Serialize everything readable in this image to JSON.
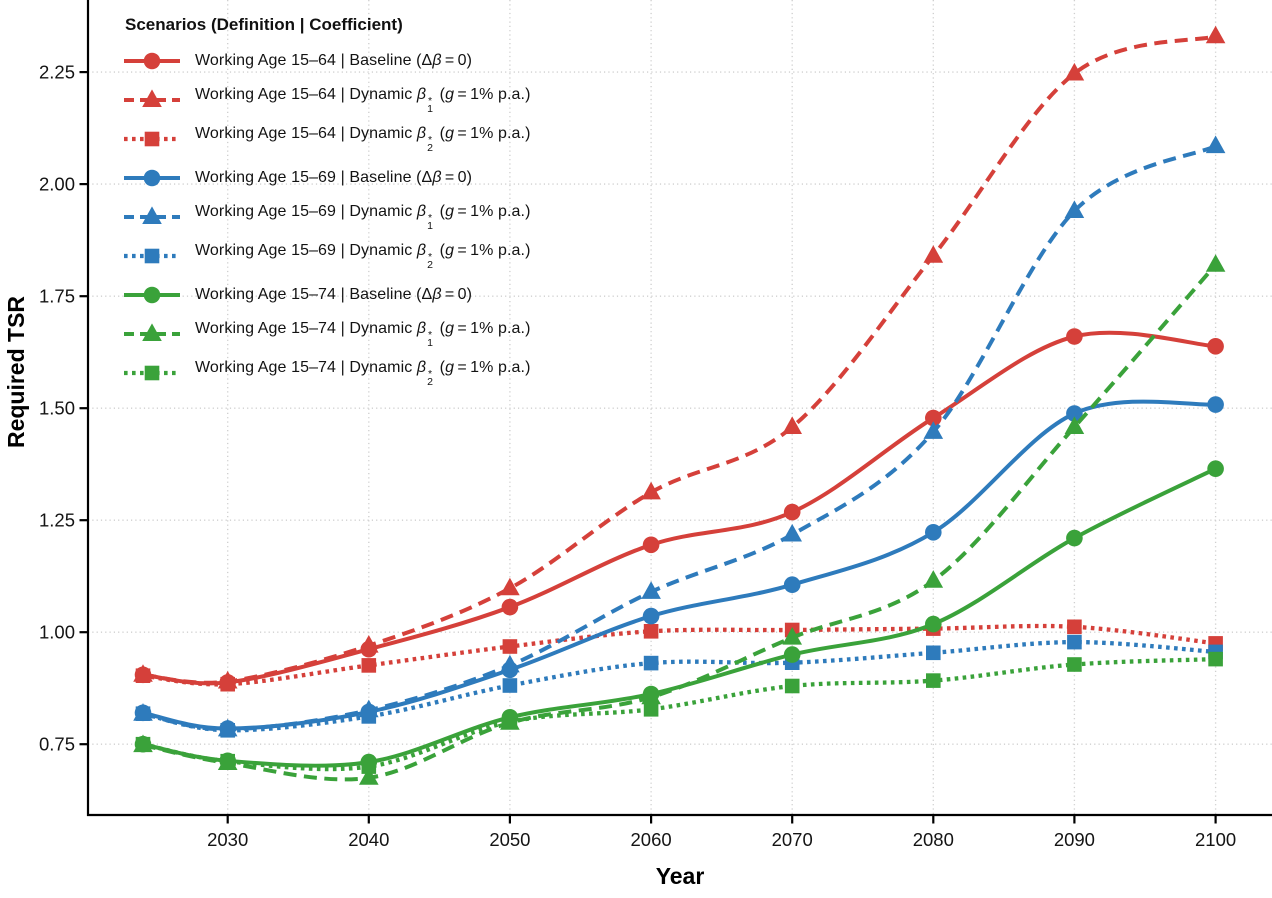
{
  "chart_data": {
    "type": "line",
    "title": "",
    "xlabel": "Year",
    "ylabel": "Required TSR",
    "legend_title": "Scenarios (Definition | Coefficient)",
    "legend_position": "top-left-inside",
    "grid": "dotted",
    "x_tick_labels": [
      "2030",
      "2040",
      "2050",
      "2060",
      "2070",
      "2080",
      "2090",
      "2100"
    ],
    "y_tick_labels": [
      "0.75",
      "1.00",
      "1.25",
      "1.50",
      "1.75",
      "2.00",
      "2.25"
    ],
    "x_axis_range": [
      2020.1,
      2104.0
    ],
    "y_axis_range": [
      0.592,
      2.411
    ],
    "x": [
      2024,
      2030,
      2040,
      2050,
      2060,
      2070,
      2080,
      2090,
      2100
    ],
    "series": [
      {
        "name": "Working Age 15–64 | Baseline (Δβ = 0)",
        "label_html": "Working Age 15–64 | Baseline (Δ<i>β</i>&#8201;=&#8201;0)",
        "color": "#d5403a",
        "line": "solid",
        "marker": "circle",
        "values": [
          0.905,
          0.888,
          0.962,
          1.056,
          1.195,
          1.268,
          1.478,
          1.66,
          1.638
        ]
      },
      {
        "name": "Working Age 15–64 | Dynamic β₁* (g = 1% p.a.)",
        "label_html": "Working Age 15–64 | Dynamic <i>β</i><span class='ss'><span>*</span><span>1</span></span> (<i>g</i>&#8201;=&#8201;1% p.a.)",
        "color": "#d5403a",
        "line": "dashed",
        "marker": "triangle",
        "values": [
          0.905,
          0.89,
          0.97,
          1.098,
          1.312,
          1.458,
          1.84,
          2.247,
          2.33
        ]
      },
      {
        "name": "Working Age 15–64 | Dynamic β₂* (g = 1% p.a.)",
        "label_html": "Working Age 15–64 | Dynamic <i>β</i><span class='ss'><span>*</span><span>2</span></span> (<i>g</i>&#8201;=&#8201;1% p.a.)",
        "color": "#d5403a",
        "line": "dotted",
        "marker": "square",
        "values": [
          0.903,
          0.884,
          0.926,
          0.968,
          1.002,
          1.005,
          1.008,
          1.012,
          0.975
        ]
      },
      {
        "name": "Working Age 15–69 | Baseline (Δβ = 0)",
        "label_html": "Working Age 15–69 | Baseline (Δ<i>β</i>&#8201;=&#8201;0)",
        "color": "#2e7bbc",
        "line": "solid",
        "marker": "circle",
        "values": [
          0.82,
          0.785,
          0.822,
          0.916,
          1.036,
          1.106,
          1.223,
          1.488,
          1.508
        ]
      },
      {
        "name": "Working Age 15–69 | Dynamic β₁* (g = 1% p.a.)",
        "label_html": "Working Age 15–69 | Dynamic <i>β</i><span class='ss'><span>*</span><span>1</span></span> (<i>g</i>&#8201;=&#8201;1% p.a.)",
        "color": "#2e7bbc",
        "line": "dashed",
        "marker": "triangle",
        "values": [
          0.818,
          0.783,
          0.826,
          0.926,
          1.09,
          1.218,
          1.447,
          1.94,
          2.085
        ]
      },
      {
        "name": "Working Age 15–69 | Dynamic β₂* (g = 1% p.a.)",
        "label_html": "Working Age 15–69 | Dynamic <i>β</i><span class='ss'><span>*</span><span>2</span></span> (<i>g</i>&#8201;=&#8201;1% p.a.)",
        "color": "#2e7bbc",
        "line": "dotted",
        "marker": "square",
        "values": [
          0.818,
          0.781,
          0.812,
          0.881,
          0.931,
          0.932,
          0.954,
          0.978,
          0.956
        ]
      },
      {
        "name": "Working Age 15–74 | Baseline (Δβ = 0)",
        "label_html": "Working Age 15–74 | Baseline (Δ<i>β</i>&#8201;=&#8201;0)",
        "color": "#3aa23a",
        "line": "solid",
        "marker": "circle",
        "values": [
          0.75,
          0.713,
          0.71,
          0.81,
          0.862,
          0.95,
          1.018,
          1.21,
          1.365
        ]
      },
      {
        "name": "Working Age 15–74 | Dynamic β₁* (g = 1% p.a.)",
        "label_html": "Working Age 15–74 | Dynamic <i>β</i><span class='ss'><span>*</span><span>1</span></span> (<i>g</i>&#8201;=&#8201;1% p.a.)",
        "color": "#3aa23a",
        "line": "dashed",
        "marker": "triangle",
        "values": [
          0.748,
          0.708,
          0.675,
          0.798,
          0.855,
          0.988,
          1.115,
          1.458,
          1.82
        ]
      },
      {
        "name": "Working Age 15–74 | Dynamic β₂* (g = 1% p.a.)",
        "label_html": "Working Age 15–74 | Dynamic <i>β</i><span class='ss'><span>*</span><span>2</span></span> (<i>g</i>&#8201;=&#8201;1% p.a.)",
        "color": "#3aa23a",
        "line": "dotted",
        "marker": "square",
        "values": [
          0.75,
          0.712,
          0.7,
          0.8,
          0.828,
          0.88,
          0.892,
          0.928,
          0.94
        ]
      }
    ],
    "style_colors": {
      "grid": "#cfcfcf",
      "axis": "#000000",
      "tick_text": "#141414"
    }
  }
}
